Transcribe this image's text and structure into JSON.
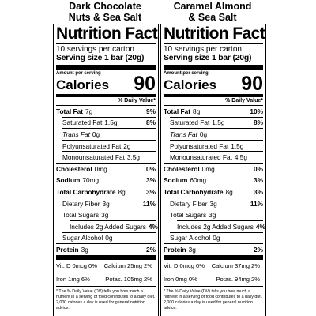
{
  "products": [
    {
      "name": [
        "Dark Chocolate",
        "Nuts & Sea Salt"
      ],
      "label": {
        "title": "Nutrition Facts",
        "servings": "10 servings per carton",
        "serving_size_label": "Serving size",
        "serving_size": "1 bar (20g)",
        "amount_per_serving": "Amount per serving",
        "calories_label": "Calories",
        "calories": "90",
        "dv_header": "% Daily Value*",
        "rows": [
          {
            "name": "Total Fat",
            "amount": "7g",
            "dv": "9%"
          },
          {
            "name": "Saturated Fat",
            "amount": "1.5g",
            "dv": "8%"
          },
          {
            "name": "Trans Fat",
            "amount": "0g",
            "dv": ""
          },
          {
            "name": "Polyunsaturated Fat",
            "amount": "2g",
            "dv": ""
          },
          {
            "name": "Monounsaturated Fat",
            "amount": "3.5g",
            "dv": ""
          },
          {
            "name": "Cholesterol",
            "amount": "0mg",
            "dv": "0%"
          },
          {
            "name": "Sodium",
            "amount": "70mg",
            "dv": "3%"
          },
          {
            "name": "Total Carbohydrate",
            "amount": "8g",
            "dv": "3%"
          },
          {
            "name": "Dietary Fiber",
            "amount": "3g",
            "dv": "11%"
          },
          {
            "name": "Total Sugars",
            "amount": "3g",
            "dv": ""
          },
          {
            "name": "Includes 2g Added Sugars",
            "amount": "",
            "dv": "4%"
          },
          {
            "name": "Sugar Alcohol",
            "amount": "0g",
            "dv": ""
          },
          {
            "name": "Protein",
            "amount": "3g",
            "dv": "2%"
          }
        ],
        "micros": [
          [
            {
              "name": "Vit. D",
              "amount": "0mcg",
              "dv": "0%"
            },
            {
              "name": "Calcium",
              "amount": "25mg",
              "dv": "2%"
            }
          ],
          [
            {
              "name": "Iron",
              "amount": "1mg",
              "dv": "6%"
            },
            {
              "name": "Potas.",
              "amount": "105mg",
              "dv": "2%"
            }
          ]
        ],
        "footnote": "* The % Daily Value (DV) tells you how much a nutrient in a serving of food contributes to a daily diet. 2,000 calories a day is used for general nutrition advice."
      }
    },
    {
      "name": [
        "Caramel Almond",
        "& Sea Salt"
      ],
      "label": {
        "title": "Nutrition Facts",
        "servings": "10 servings per carton",
        "serving_size_label": "Serving size",
        "serving_size": "1 bar (20g)",
        "amount_per_serving": "Amount per serving",
        "calories_label": "Calories",
        "calories": "90",
        "dv_header": "% Daily Value*",
        "rows": [
          {
            "name": "Total Fat",
            "amount": "8g",
            "dv": "10%"
          },
          {
            "name": "Saturated Fat",
            "amount": "1.5g",
            "dv": "8%"
          },
          {
            "name": "Trans Fat",
            "amount": "0g",
            "dv": ""
          },
          {
            "name": "Polyunsaturated Fat",
            "amount": "1.5g",
            "dv": ""
          },
          {
            "name": "Monounsaturated Fat",
            "amount": "4.5g",
            "dv": ""
          },
          {
            "name": "Cholesterol",
            "amount": "0mg",
            "dv": "0%"
          },
          {
            "name": "Sodium",
            "amount": "60mg",
            "dv": "3%"
          },
          {
            "name": "Total Carbohydrate",
            "amount": "8g",
            "dv": "3%"
          },
          {
            "name": "Dietary Fiber",
            "amount": "3g",
            "dv": "11%"
          },
          {
            "name": "Total Sugars",
            "amount": "3g",
            "dv": ""
          },
          {
            "name": "Includes 2g Added Sugars",
            "amount": "",
            "dv": "4%"
          },
          {
            "name": "Sugar Alcohol",
            "amount": "0g",
            "dv": ""
          },
          {
            "name": "Protein",
            "amount": "3g",
            "dv": "2%"
          }
        ],
        "micros": [
          [
            {
              "name": "Vit. D",
              "amount": "0mcg",
              "dv": "0%"
            },
            {
              "name": "Calcium",
              "amount": "37mg",
              "dv": "2%"
            }
          ],
          [
            {
              "name": "Iron",
              "amount": "0mg",
              "dv": "0%"
            },
            {
              "name": "Potas.",
              "amount": "94mg",
              "dv": "2%"
            }
          ]
        ],
        "footnote": "* The % Daily Value (DV) tells you how much a nutrient in a serving of food contributes to a daily diet. 2,000 calories a day is used for general nutrition advice."
      }
    }
  ]
}
